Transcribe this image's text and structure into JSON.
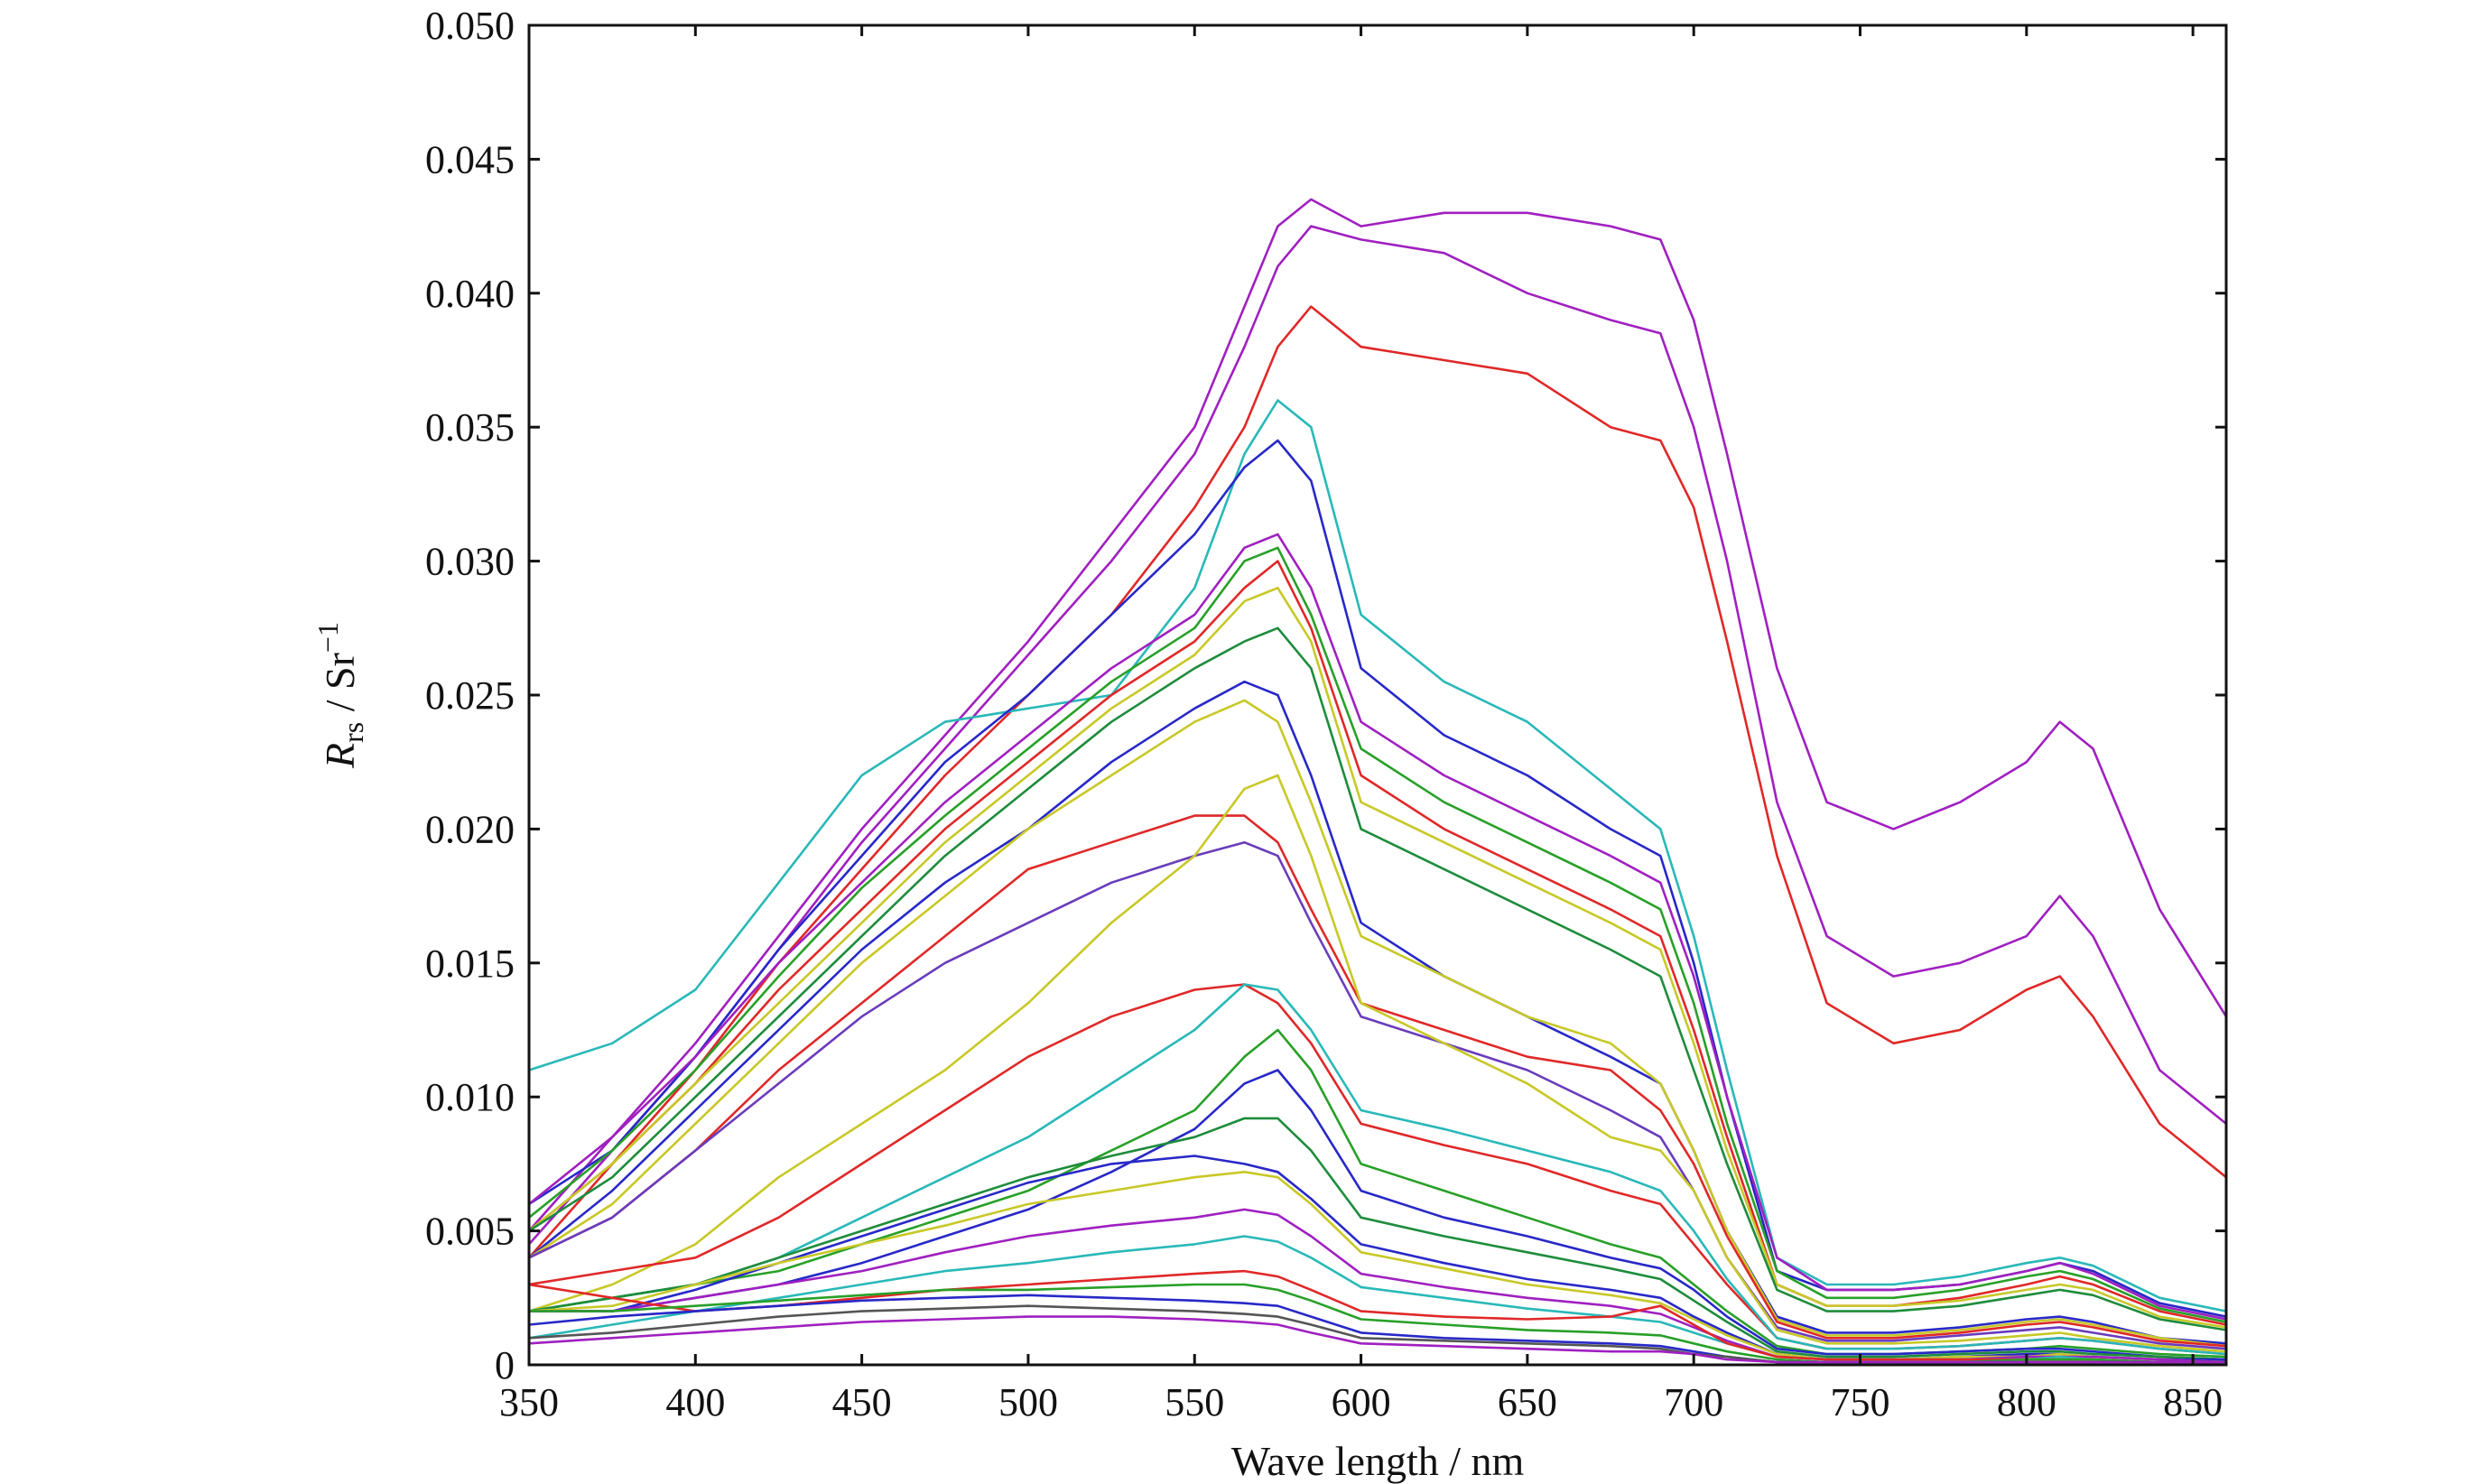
{
  "chart_data": {
    "type": "line",
    "xlabel": "Wave length / nm",
    "ylabel": {
      "base": "R",
      "sub": "rs",
      "sep": " / Sr",
      "sup": "−1"
    },
    "xlim": [
      350,
      860
    ],
    "ylim": [
      0,
      0.05
    ],
    "xticks": [
      350,
      400,
      450,
      500,
      550,
      600,
      650,
      700,
      750,
      800,
      850
    ],
    "xtick_labels": [
      "350",
      "400",
      "450",
      "500",
      "550",
      "600",
      "650",
      "700",
      "750",
      "800",
      "850"
    ],
    "yticks": [
      0,
      0.005,
      0.01,
      0.015,
      0.02,
      0.025,
      0.03,
      0.035,
      0.04,
      0.045,
      0.05
    ],
    "ytick_labels": [
      "0",
      "0.005",
      "0.010",
      "0.015",
      "0.020",
      "0.025",
      "0.030",
      "0.035",
      "0.040",
      "0.045",
      "0.050"
    ],
    "grid": false,
    "legend": false,
    "x": [
      350,
      375,
      400,
      425,
      450,
      475,
      500,
      525,
      550,
      565,
      575,
      585,
      600,
      625,
      650,
      675,
      690,
      700,
      710,
      725,
      740,
      760,
      780,
      800,
      810,
      820,
      840,
      860
    ],
    "series": [
      {
        "color": "#a020c0",
        "values": [
          0.005,
          0.0085,
          0.012,
          0.016,
          0.02,
          0.0235,
          0.027,
          0.031,
          0.035,
          0.0395,
          0.0425,
          0.0435,
          0.0425,
          0.043,
          0.043,
          0.0425,
          0.042,
          0.039,
          0.034,
          0.026,
          0.021,
          0.02,
          0.021,
          0.0225,
          0.024,
          0.023,
          0.017,
          0.013
        ]
      },
      {
        "color": "#a020c0",
        "values": [
          0.0045,
          0.008,
          0.0115,
          0.0155,
          0.0195,
          0.023,
          0.0265,
          0.03,
          0.034,
          0.038,
          0.041,
          0.0425,
          0.042,
          0.0415,
          0.04,
          0.039,
          0.0385,
          0.035,
          0.03,
          0.021,
          0.016,
          0.0145,
          0.015,
          0.016,
          0.0175,
          0.016,
          0.011,
          0.009
        ]
      },
      {
        "color": "#e02828",
        "values": [
          0.004,
          0.0075,
          0.011,
          0.015,
          0.0185,
          0.022,
          0.025,
          0.028,
          0.032,
          0.035,
          0.038,
          0.0395,
          0.038,
          0.0375,
          0.037,
          0.035,
          0.0345,
          0.032,
          0.027,
          0.019,
          0.0135,
          0.012,
          0.0125,
          0.014,
          0.0145,
          0.013,
          0.009,
          0.007
        ]
      },
      {
        "color": "#2ab8b8",
        "values": [
          0.011,
          0.012,
          0.014,
          0.018,
          0.022,
          0.024,
          0.0245,
          0.025,
          0.029,
          0.034,
          0.036,
          0.035,
          0.028,
          0.0255,
          0.024,
          0.0215,
          0.02,
          0.016,
          0.011,
          0.004,
          0.003,
          0.003,
          0.0033,
          0.0038,
          0.004,
          0.0037,
          0.0025,
          0.002
        ]
      },
      {
        "color": "#2828c8",
        "values": [
          0.006,
          0.008,
          0.0115,
          0.0155,
          0.019,
          0.0225,
          0.025,
          0.028,
          0.031,
          0.0335,
          0.0345,
          0.033,
          0.026,
          0.0235,
          0.022,
          0.02,
          0.019,
          0.015,
          0.01,
          0.0035,
          0.0028,
          0.0028,
          0.003,
          0.0035,
          0.0038,
          0.0035,
          0.0023,
          0.0018
        ]
      },
      {
        "color": "#a020c0",
        "values": [
          0.006,
          0.0085,
          0.0115,
          0.015,
          0.018,
          0.021,
          0.0235,
          0.026,
          0.028,
          0.0305,
          0.031,
          0.029,
          0.024,
          0.022,
          0.0205,
          0.019,
          0.018,
          0.0145,
          0.01,
          0.004,
          0.0028,
          0.0028,
          0.003,
          0.0035,
          0.0038,
          0.0034,
          0.0022,
          0.0017
        ]
      },
      {
        "color": "#28a028",
        "values": [
          0.0055,
          0.008,
          0.011,
          0.0145,
          0.0178,
          0.0205,
          0.023,
          0.0255,
          0.0275,
          0.03,
          0.0305,
          0.028,
          0.023,
          0.021,
          0.0195,
          0.018,
          0.017,
          0.0135,
          0.009,
          0.0035,
          0.0025,
          0.0025,
          0.0028,
          0.0033,
          0.0035,
          0.0032,
          0.0021,
          0.0016
        ]
      },
      {
        "color": "#e02828",
        "values": [
          0.005,
          0.0075,
          0.0105,
          0.014,
          0.017,
          0.02,
          0.0225,
          0.025,
          0.027,
          0.029,
          0.03,
          0.0275,
          0.022,
          0.02,
          0.0185,
          0.017,
          0.016,
          0.0125,
          0.0085,
          0.003,
          0.0022,
          0.0022,
          0.0025,
          0.003,
          0.0033,
          0.003,
          0.002,
          0.0015
        ]
      },
      {
        "color": "#c8c828",
        "values": [
          0.005,
          0.0075,
          0.0105,
          0.0135,
          0.0165,
          0.0195,
          0.022,
          0.0245,
          0.0265,
          0.0285,
          0.029,
          0.027,
          0.021,
          0.0195,
          0.018,
          0.0165,
          0.0155,
          0.012,
          0.008,
          0.003,
          0.0022,
          0.0022,
          0.0024,
          0.0028,
          0.003,
          0.0028,
          0.0018,
          0.0014
        ]
      },
      {
        "color": "#1e8c3c",
        "values": [
          0.005,
          0.007,
          0.01,
          0.013,
          0.016,
          0.019,
          0.0215,
          0.024,
          0.026,
          0.027,
          0.0275,
          0.026,
          0.02,
          0.0185,
          0.017,
          0.0155,
          0.0145,
          0.011,
          0.0075,
          0.0028,
          0.002,
          0.002,
          0.0022,
          0.0026,
          0.0028,
          0.0026,
          0.0017,
          0.0013
        ]
      },
      {
        "color": "#2828c8",
        "values": [
          0.004,
          0.0065,
          0.0095,
          0.0125,
          0.0155,
          0.018,
          0.02,
          0.0225,
          0.0245,
          0.0255,
          0.025,
          0.022,
          0.0165,
          0.0145,
          0.013,
          0.0115,
          0.0105,
          0.008,
          0.005,
          0.0018,
          0.0012,
          0.0012,
          0.0014,
          0.0017,
          0.0018,
          0.0016,
          0.001,
          0.0008
        ]
      },
      {
        "color": "#c8c828",
        "values": [
          0.004,
          0.006,
          0.009,
          0.012,
          0.015,
          0.0175,
          0.02,
          0.022,
          0.024,
          0.0248,
          0.024,
          0.021,
          0.016,
          0.0145,
          0.013,
          0.012,
          0.0105,
          0.008,
          0.005,
          0.0017,
          0.0011,
          0.0011,
          0.0013,
          0.0016,
          0.0017,
          0.0015,
          0.001,
          0.0007
        ]
      },
      {
        "color": "#e02828",
        "values": [
          0.004,
          0.0055,
          0.008,
          0.011,
          0.0135,
          0.016,
          0.0185,
          0.0195,
          0.0205,
          0.0205,
          0.0195,
          0.017,
          0.0135,
          0.0125,
          0.0115,
          0.011,
          0.0095,
          0.0075,
          0.0048,
          0.0016,
          0.001,
          0.001,
          0.0012,
          0.0015,
          0.0016,
          0.0014,
          0.0009,
          0.0007
        ]
      },
      {
        "color": "#6a3cbc",
        "values": [
          0.004,
          0.0055,
          0.008,
          0.0105,
          0.013,
          0.015,
          0.0165,
          0.018,
          0.019,
          0.0195,
          0.019,
          0.0165,
          0.013,
          0.012,
          0.011,
          0.0095,
          0.0085,
          0.0065,
          0.004,
          0.0014,
          0.0009,
          0.0009,
          0.0011,
          0.0013,
          0.0014,
          0.0012,
          0.0008,
          0.0006
        ]
      },
      {
        "color": "#c8c828",
        "values": [
          0.002,
          0.003,
          0.0045,
          0.007,
          0.009,
          0.011,
          0.0135,
          0.0165,
          0.019,
          0.0215,
          0.022,
          0.019,
          0.0135,
          0.012,
          0.0105,
          0.0085,
          0.008,
          0.0065,
          0.004,
          0.0013,
          0.0008,
          0.0008,
          0.0009,
          0.0011,
          0.0012,
          0.001,
          0.0007,
          0.0005
        ]
      },
      {
        "color": "#e02828",
        "values": [
          0.003,
          0.0035,
          0.004,
          0.0055,
          0.0075,
          0.0095,
          0.0115,
          0.013,
          0.014,
          0.0142,
          0.0135,
          0.012,
          0.009,
          0.0082,
          0.0075,
          0.0065,
          0.006,
          0.0045,
          0.003,
          0.001,
          0.0006,
          0.0006,
          0.0007,
          0.0009,
          0.001,
          0.0009,
          0.0006,
          0.0004
        ]
      },
      {
        "color": "#2ab8b8",
        "values": [
          0.002,
          0.0025,
          0.003,
          0.004,
          0.0055,
          0.007,
          0.0085,
          0.0105,
          0.0125,
          0.0142,
          0.014,
          0.0125,
          0.0095,
          0.0088,
          0.008,
          0.0072,
          0.0065,
          0.005,
          0.0032,
          0.001,
          0.0006,
          0.0006,
          0.0007,
          0.0009,
          0.001,
          0.0009,
          0.0006,
          0.0004
        ]
      },
      {
        "color": "#28a028",
        "values": [
          0.002,
          0.0025,
          0.003,
          0.0035,
          0.0045,
          0.0055,
          0.0065,
          0.008,
          0.0095,
          0.0115,
          0.0125,
          0.011,
          0.0075,
          0.0065,
          0.0055,
          0.0045,
          0.004,
          0.003,
          0.002,
          0.0007,
          0.0004,
          0.0004,
          0.0005,
          0.0006,
          0.0007,
          0.0006,
          0.0004,
          0.0003
        ]
      },
      {
        "color": "#2828c8",
        "values": [
          0.002,
          0.002,
          0.0025,
          0.003,
          0.0038,
          0.0048,
          0.0058,
          0.0072,
          0.0088,
          0.0105,
          0.011,
          0.0095,
          0.0065,
          0.0055,
          0.0048,
          0.004,
          0.0036,
          0.0028,
          0.0018,
          0.0006,
          0.0004,
          0.0004,
          0.0005,
          0.0006,
          0.0006,
          0.0005,
          0.0003,
          0.0002
        ]
      },
      {
        "color": "#1e8c3c",
        "values": [
          0.002,
          0.0025,
          0.003,
          0.004,
          0.005,
          0.006,
          0.007,
          0.0078,
          0.0085,
          0.0092,
          0.0092,
          0.008,
          0.0055,
          0.0048,
          0.0042,
          0.0036,
          0.0032,
          0.0024,
          0.0016,
          0.0005,
          0.0003,
          0.0003,
          0.0004,
          0.0005,
          0.0005,
          0.0004,
          0.0003,
          0.0002
        ]
      },
      {
        "color": "#2828c8",
        "values": [
          0.002,
          0.002,
          0.0028,
          0.0038,
          0.0048,
          0.0058,
          0.0068,
          0.0075,
          0.0078,
          0.0075,
          0.0072,
          0.0062,
          0.0045,
          0.0038,
          0.0032,
          0.0028,
          0.0025,
          0.0018,
          0.0012,
          0.0004,
          0.0002,
          0.0002,
          0.0003,
          0.0004,
          0.0004,
          0.0003,
          0.0002,
          0.0002
        ]
      },
      {
        "color": "#c8c828",
        "values": [
          0.002,
          0.0022,
          0.003,
          0.0038,
          0.0045,
          0.0052,
          0.006,
          0.0065,
          0.007,
          0.0072,
          0.007,
          0.006,
          0.0042,
          0.0036,
          0.003,
          0.0026,
          0.0023,
          0.0017,
          0.0011,
          0.0004,
          0.0002,
          0.0002,
          0.0003,
          0.0003,
          0.0004,
          0.0003,
          0.0002,
          0.0001
        ]
      },
      {
        "color": "#a020c0",
        "values": [
          0.002,
          0.002,
          0.0025,
          0.003,
          0.0035,
          0.0042,
          0.0048,
          0.0052,
          0.0055,
          0.0058,
          0.0056,
          0.0048,
          0.0034,
          0.0029,
          0.0025,
          0.0022,
          0.0019,
          0.0014,
          0.0009,
          0.0003,
          0.0002,
          0.0002,
          0.0002,
          0.0003,
          0.0003,
          0.0003,
          0.0002,
          0.0001
        ]
      },
      {
        "color": "#2ab8b8",
        "values": [
          0.001,
          0.0015,
          0.002,
          0.0025,
          0.003,
          0.0035,
          0.0038,
          0.0042,
          0.0045,
          0.0048,
          0.0046,
          0.004,
          0.0029,
          0.0025,
          0.0021,
          0.0018,
          0.0016,
          0.0012,
          0.0008,
          0.0003,
          0.0002,
          0.0002,
          0.0002,
          0.0002,
          0.0003,
          0.0002,
          0.0001,
          0.0001
        ]
      },
      {
        "color": "#e02828",
        "values": [
          0.003,
          0.0025,
          0.002,
          0.0022,
          0.0025,
          0.0028,
          0.003,
          0.0032,
          0.0034,
          0.0035,
          0.0033,
          0.0028,
          0.002,
          0.0018,
          0.0017,
          0.0018,
          0.0022,
          0.0015,
          0.0008,
          0.0003,
          0.0002,
          0.0002,
          0.0002,
          0.0002,
          0.0002,
          0.0002,
          0.0001,
          0.0001
        ]
      },
      {
        "color": "#28a028",
        "values": [
          0.002,
          0.002,
          0.0022,
          0.0024,
          0.0026,
          0.0028,
          0.0028,
          0.0029,
          0.003,
          0.003,
          0.0028,
          0.0024,
          0.0017,
          0.0015,
          0.0013,
          0.0012,
          0.0011,
          0.0008,
          0.0005,
          0.0002,
          0.0001,
          0.0001,
          0.0001,
          0.0002,
          0.0002,
          0.0002,
          0.0001,
          0.0001
        ]
      },
      {
        "color": "#2828c8",
        "values": [
          0.0015,
          0.0018,
          0.002,
          0.0022,
          0.0024,
          0.0025,
          0.0026,
          0.0025,
          0.0024,
          0.0023,
          0.0022,
          0.0018,
          0.0012,
          0.001,
          0.0009,
          0.0008,
          0.0007,
          0.0005,
          0.0003,
          0.0001,
          0.0001,
          0.0001,
          0.0001,
          0.0001,
          0.0001,
          0.0001,
          0.0001,
          0.0001
        ]
      },
      {
        "color": "#555555",
        "values": [
          0.001,
          0.0012,
          0.0015,
          0.0018,
          0.002,
          0.0021,
          0.0022,
          0.0021,
          0.002,
          0.0019,
          0.0018,
          0.0015,
          0.001,
          0.0009,
          0.0008,
          0.0007,
          0.0006,
          0.0004,
          0.0003,
          0.0001,
          0.0001,
          0.0001,
          0.0001,
          0.0001,
          0.0001,
          0.0001,
          0.0001,
          0.0001
        ]
      },
      {
        "color": "#a020c0",
        "values": [
          0.0008,
          0.001,
          0.0012,
          0.0014,
          0.0016,
          0.0017,
          0.0018,
          0.0018,
          0.0017,
          0.0016,
          0.0015,
          0.0012,
          0.0008,
          0.0007,
          0.0006,
          0.0005,
          0.0005,
          0.0004,
          0.0002,
          0.0001,
          0.0001,
          0.0001,
          0.0001,
          0.0001,
          0.0001,
          0.0001,
          0.0001,
          0.0001
        ]
      }
    ]
  }
}
